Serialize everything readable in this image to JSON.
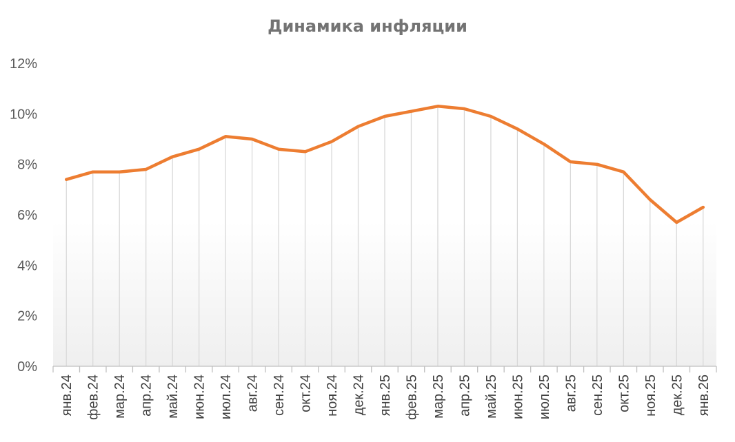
{
  "chart_data": {
    "type": "line",
    "title": "Динамика инфляции",
    "xlabel": "",
    "ylabel": "",
    "ylim": [
      0,
      12
    ],
    "yticks": [
      "0%",
      "2%",
      "4%",
      "6%",
      "8%",
      "10%",
      "12%"
    ],
    "grid": {
      "vertical_drop_lines": true,
      "horizontal": false
    },
    "legend": "none",
    "categories": [
      "янв.24",
      "фев.24",
      "мар.24",
      "апр.24",
      "май.24",
      "июн.24",
      "июл.24",
      "авг.24",
      "сен.24",
      "окт.24",
      "ноя.24",
      "дек.24",
      "янв.25",
      "фев.25",
      "мар.25",
      "апр.25",
      "май.25",
      "июн.25",
      "июл.25",
      "авг.25",
      "сен.25",
      "окт.25",
      "ноя.25",
      "дек.25",
      "янв.26"
    ],
    "series": [
      {
        "values": [
          7.4,
          7.7,
          7.7,
          7.8,
          8.3,
          8.6,
          9.1,
          9.0,
          8.6,
          8.5,
          8.9,
          9.5,
          9.9,
          10.1,
          10.3,
          10.2,
          9.9,
          9.4,
          8.8,
          8.1,
          8.0,
          7.7,
          6.6,
          5.7,
          6.3
        ],
        "color": "#ED7D31"
      }
    ],
    "colors": {
      "line": "#ED7D31",
      "axis": "#BFBFBF",
      "dropline": "#D9D9D9",
      "title": "#737373",
      "ticks": "#595959"
    }
  }
}
